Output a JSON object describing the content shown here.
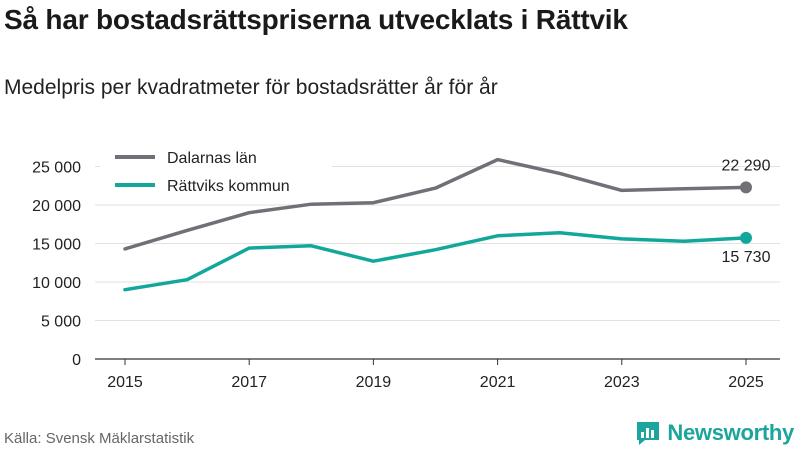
{
  "header": {
    "title": "Så har bostadsrättspriserna utvecklats i Rättvik",
    "subtitle": "Medelpris per kvadratmeter för bostadsrätter år för år"
  },
  "footer": {
    "source": "Källa: Svensk Mäklarstatistik",
    "brand": "Newsworthy",
    "brand_icon": "newsworthy-logo-icon"
  },
  "colors": {
    "dalarna": "#717077",
    "rattvik": "#11a89b",
    "grid": "#e2e2e2",
    "brand": "#1ba59c"
  },
  "chart_data": {
    "type": "line",
    "title": "Så har bostadsrättspriserna utvecklats i Rättvik",
    "subtitle": "Medelpris per kvadratmeter för bostadsrätter år för år",
    "xlabel": "",
    "ylabel": "",
    "x": [
      2015,
      2016,
      2017,
      2018,
      2019,
      2020,
      2021,
      2022,
      2023,
      2024,
      2025
    ],
    "xticks": [
      "2015",
      "2017",
      "2019",
      "2021",
      "2023",
      "2025"
    ],
    "yticks": [
      "0",
      "5 000",
      "10 000",
      "15 000",
      "20 000",
      "25 000"
    ],
    "ylim": [
      0,
      27000
    ],
    "grid": true,
    "legend_position": "top-left",
    "series": [
      {
        "name": "Dalarnas län",
        "color": "#717077",
        "values": [
          14300,
          16700,
          19000,
          20100,
          20300,
          22200,
          25900,
          24100,
          21900,
          22100,
          22290
        ],
        "end_label": "22 290"
      },
      {
        "name": "Rättviks kommun",
        "color": "#11a89b",
        "values": [
          9000,
          10300,
          14400,
          14700,
          12700,
          14200,
          16000,
          16400,
          15600,
          15300,
          15730
        ],
        "end_label": "15 730"
      }
    ]
  }
}
